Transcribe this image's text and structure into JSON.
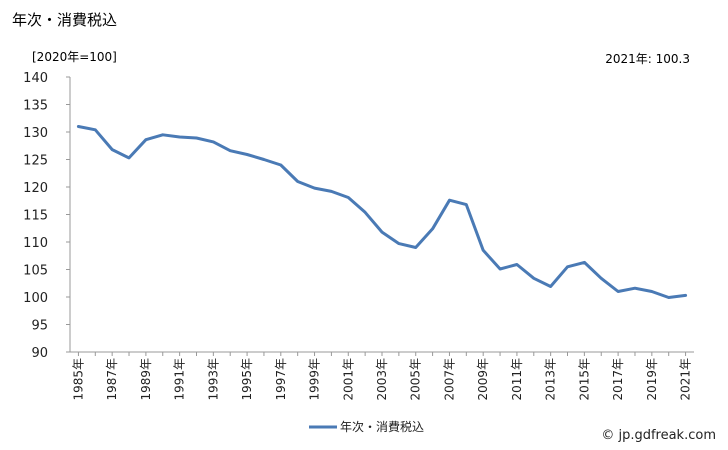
{
  "title": "年次・消費税込",
  "unit_label": "[2020年=100]",
  "latest_label": "2021年: 100.3",
  "source": "© jp.gdfreak.com",
  "chart_data": {
    "type": "line",
    "title": "年次・消費税込",
    "ylabel": "[2020年=100]",
    "xlabel": "",
    "ylim": [
      90,
      140
    ],
    "yticks": [
      90,
      95,
      100,
      105,
      110,
      115,
      120,
      125,
      130,
      135,
      140
    ],
    "x": [
      "1985年",
      "1986年",
      "1987年",
      "1988年",
      "1989年",
      "1990年",
      "1991年",
      "1992年",
      "1993年",
      "1994年",
      "1995年",
      "1996年",
      "1997年",
      "1998年",
      "1999年",
      "2000年",
      "2001年",
      "2002年",
      "2003年",
      "2004年",
      "2005年",
      "2006年",
      "2007年",
      "2008年",
      "2009年",
      "2010年",
      "2011年",
      "2012年",
      "2013年",
      "2014年",
      "2015年",
      "2016年",
      "2017年",
      "2018年",
      "2019年",
      "2020年",
      "2021年"
    ],
    "xtick_labels": [
      "1985年",
      "1987年",
      "1989年",
      "1991年",
      "1993年",
      "1995年",
      "1997年",
      "1999年",
      "2001年",
      "2003年",
      "2005年",
      "2007年",
      "2009年",
      "2011年",
      "2013年",
      "2015年",
      "2017年",
      "2019年",
      "2021年"
    ],
    "series": [
      {
        "name": "年次・消費税込",
        "color": "#4a7ab5",
        "values": [
          131.0,
          130.4,
          126.8,
          125.3,
          128.6,
          129.5,
          129.1,
          128.9,
          128.2,
          126.6,
          125.9,
          125.0,
          124.0,
          121.0,
          119.8,
          119.2,
          118.1,
          115.4,
          111.8,
          109.7,
          109.0,
          112.4,
          117.6,
          116.8,
          108.5,
          105.1,
          105.9,
          103.4,
          101.9,
          105.5,
          106.3,
          103.4,
          101.0,
          101.6,
          101.0,
          99.9,
          100.3
        ]
      }
    ],
    "grid": false,
    "legend": "bottom-center"
  }
}
